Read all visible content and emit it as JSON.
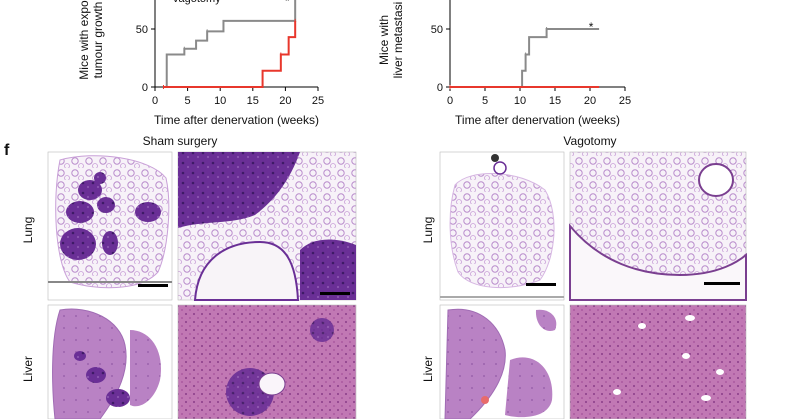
{
  "panel_f": {
    "letter": "f",
    "group_left": "Sham surgery",
    "group_right": "Vagotomy",
    "row_top": "Lung",
    "row_bottom": "Liver"
  },
  "colors": {
    "sham": "#8a8a8a",
    "vagotomy": "#e8372c",
    "tissue_dark": "#5c2a8a",
    "tissue_light": "#c9a0d8"
  },
  "chart_data": [
    {
      "type": "line",
      "title": "",
      "xlabel": "Time after denervation (weeks)",
      "ylabel": "Mice with exponential tumour growth",
      "ylabel_visible_lines": [
        "Mice with expo",
        "tumour growth"
      ],
      "legend_visible": "Vagotomy",
      "xlim": [
        0,
        25
      ],
      "ylim": [
        0,
        100
      ],
      "xticks": [
        0,
        5,
        10,
        15,
        20,
        25
      ],
      "yticks": [
        0,
        50
      ],
      "annotation": "*",
      "series": [
        {
          "color": "gray",
          "x": [
            1.3,
            1.8,
            1.8,
            4.5,
            4.5,
            6.3,
            6.3,
            8.0,
            8.0,
            10.5,
            10.5,
            21.5,
            21.5
          ],
          "y": [
            0,
            0,
            28,
            28,
            33,
            33,
            40,
            40,
            48,
            48,
            57,
            57,
            80
          ]
        },
        {
          "color": "red",
          "x": [
            1.3,
            16.5,
            16.5,
            19.3,
            19.3,
            20.5,
            20.5,
            21.5,
            21.5
          ],
          "y": [
            0,
            0,
            14,
            14,
            28,
            28,
            43,
            43,
            57
          ]
        }
      ]
    },
    {
      "type": "line",
      "title": "",
      "xlabel": "Time after denervation (weeks)",
      "ylabel": "Mice with liver metastasis",
      "ylabel_visible_lines": [
        "Mice with",
        "liver metastasi"
      ],
      "xlim": [
        0,
        25
      ],
      "ylim": [
        0,
        100
      ],
      "xticks": [
        0,
        5,
        10,
        15,
        20,
        25
      ],
      "yticks": [
        0,
        50
      ],
      "annotation": "*",
      "series": [
        {
          "color": "gray",
          "x": [
            0,
            10.3,
            10.3,
            10.8,
            10.8,
            11.3,
            11.3,
            13.8,
            13.8,
            21.3
          ],
          "y": [
            0,
            0,
            14,
            14,
            28,
            28,
            43,
            43,
            50,
            50
          ]
        },
        {
          "color": "red",
          "x": [
            0,
            21.3
          ],
          "y": [
            0,
            0
          ]
        }
      ]
    }
  ]
}
